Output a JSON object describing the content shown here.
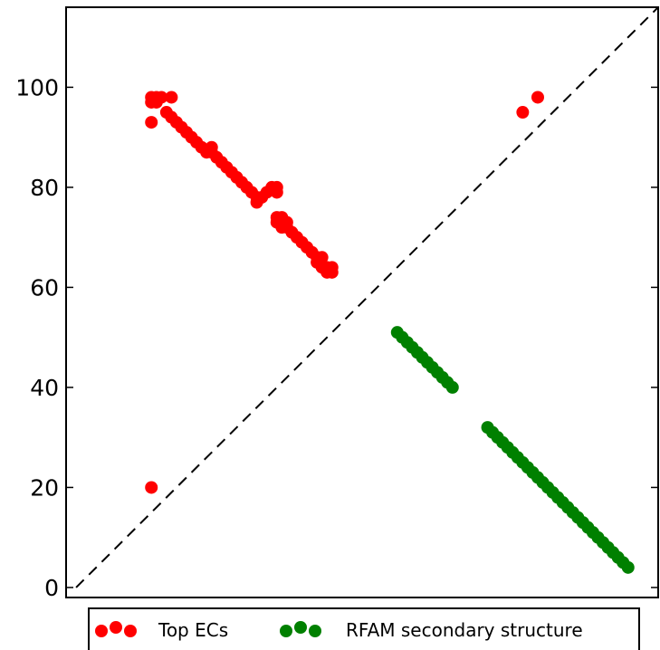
{
  "chart_data": {
    "type": "scatter",
    "title": "",
    "xlabel": "",
    "ylabel": "",
    "xlim": [
      -2,
      116
    ],
    "ylim": [
      -2,
      116
    ],
    "yticks": [
      0,
      20,
      40,
      60,
      80,
      100
    ],
    "diagonal": {
      "style": "dashed",
      "color": "#000000",
      "from": [
        0,
        0
      ],
      "to": [
        116,
        116
      ]
    },
    "legend_position": "bottom-center",
    "series": [
      {
        "name": "Top ECs",
        "color": "#ff0000",
        "points": [
          [
            15,
            93
          ],
          [
            15,
            97
          ],
          [
            15,
            98
          ],
          [
            16,
            97
          ],
          [
            16,
            98
          ],
          [
            17,
            98
          ],
          [
            19,
            98
          ],
          [
            15,
            20
          ],
          [
            18,
            95
          ],
          [
            19,
            94
          ],
          [
            20,
            93
          ],
          [
            21,
            92
          ],
          [
            22,
            91
          ],
          [
            23,
            90
          ],
          [
            24,
            89
          ],
          [
            25,
            88
          ],
          [
            26,
            87
          ],
          [
            27,
            88
          ],
          [
            27,
            87
          ],
          [
            28,
            86
          ],
          [
            29,
            85
          ],
          [
            30,
            84
          ],
          [
            31,
            83
          ],
          [
            32,
            82
          ],
          [
            33,
            81
          ],
          [
            34,
            80
          ],
          [
            35,
            79
          ],
          [
            36,
            78
          ],
          [
            36,
            77
          ],
          [
            37,
            78
          ],
          [
            38,
            79
          ],
          [
            39,
            80
          ],
          [
            40,
            80
          ],
          [
            40,
            79
          ],
          [
            40,
            74
          ],
          [
            40,
            73
          ],
          [
            41,
            74
          ],
          [
            41,
            72
          ],
          [
            42,
            73
          ],
          [
            42,
            72
          ],
          [
            43,
            71
          ],
          [
            44,
            70
          ],
          [
            45,
            69
          ],
          [
            46,
            68
          ],
          [
            47,
            67
          ],
          [
            48,
            66
          ],
          [
            48,
            65
          ],
          [
            49,
            66
          ],
          [
            49,
            64
          ],
          [
            50,
            63
          ],
          [
            50,
            64
          ],
          [
            51,
            63
          ],
          [
            51,
            64
          ],
          [
            89,
            95
          ],
          [
            92,
            98
          ]
        ]
      },
      {
        "name": "RFAM secondary structure",
        "color": "#008000",
        "points": [
          [
            64,
            51
          ],
          [
            65,
            50
          ],
          [
            66,
            49
          ],
          [
            67,
            48
          ],
          [
            68,
            47
          ],
          [
            69,
            46
          ],
          [
            70,
            45
          ],
          [
            71,
            44
          ],
          [
            72,
            43
          ],
          [
            73,
            42
          ],
          [
            74,
            41
          ],
          [
            75,
            40
          ],
          [
            82,
            32
          ],
          [
            83,
            31
          ],
          [
            84,
            30
          ],
          [
            85,
            29
          ],
          [
            86,
            28
          ],
          [
            87,
            27
          ],
          [
            88,
            26
          ],
          [
            89,
            25
          ],
          [
            90,
            24
          ],
          [
            91,
            23
          ],
          [
            92,
            22
          ],
          [
            93,
            21
          ],
          [
            94,
            20
          ],
          [
            95,
            19
          ],
          [
            96,
            18
          ],
          [
            97,
            17
          ],
          [
            98,
            16
          ],
          [
            99,
            15
          ],
          [
            100,
            14
          ],
          [
            101,
            13
          ],
          [
            102,
            12
          ],
          [
            103,
            11
          ],
          [
            104,
            10
          ],
          [
            105,
            9
          ],
          [
            106,
            8
          ],
          [
            107,
            7
          ],
          [
            108,
            6
          ],
          [
            109,
            5
          ],
          [
            110,
            4
          ]
        ]
      }
    ]
  }
}
